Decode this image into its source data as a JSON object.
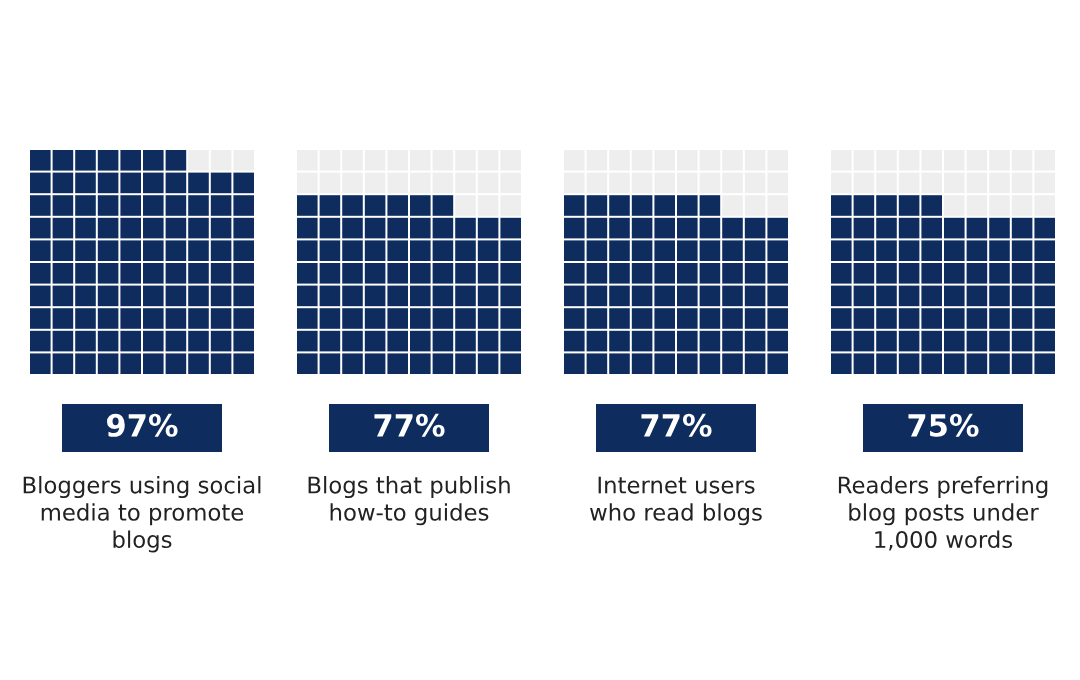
{
  "chart_data": {
    "type": "other",
    "categories": [
      "Bloggers using social\nmedia to promote\nblogs",
      "Blogs that publish\nhow-to guides",
      "Internet users\nwho read blogs",
      "Readers preferring\nblog posts under\n1,000 words"
    ],
    "values": [
      97,
      77,
      77,
      75
    ],
    "value_labels": [
      "97%",
      "77%",
      "77%",
      "75%"
    ],
    "color": "#0e2d5e"
  }
}
